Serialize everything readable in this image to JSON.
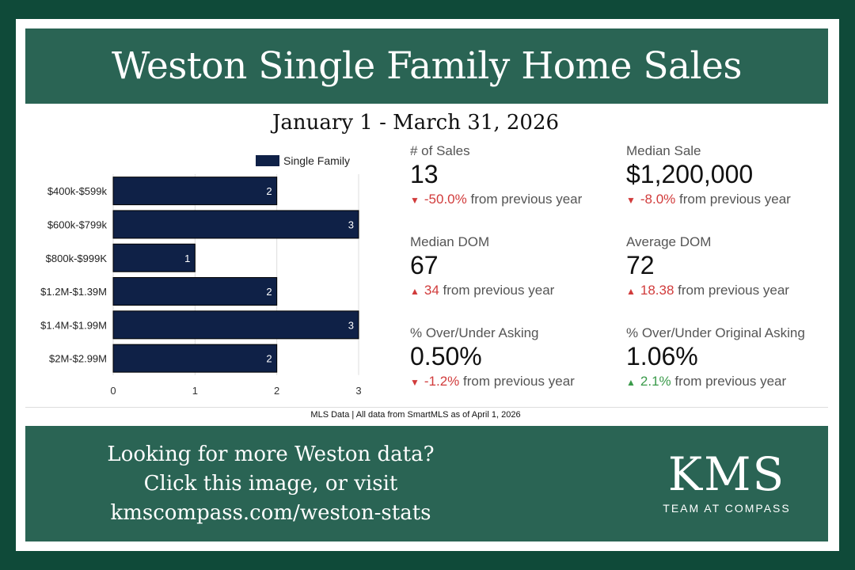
{
  "header": {
    "title": "Weston Single Family Home Sales"
  },
  "date_range": "January 1 - March 31, 2026",
  "chart_data": {
    "type": "bar",
    "orientation": "horizontal",
    "categories": [
      "$400k-$599k",
      "$600k-$799k",
      "$800k-$999K",
      "$1.2M-$1.39M",
      "$1.4M-$1.99M",
      "$2M-$2.99M"
    ],
    "series": [
      {
        "name": "Single Family",
        "values": [
          2,
          3,
          1,
          2,
          3,
          2
        ]
      }
    ],
    "xlim": [
      0,
      3
    ],
    "x_ticks": [
      "0",
      "1",
      "2",
      "3"
    ],
    "grid": true,
    "legend_position": "top-right",
    "colors": {
      "bar": "#0f2147",
      "label": "#ffffff",
      "grid": "#dddddd"
    }
  },
  "stats": [
    {
      "label": "# of Sales",
      "value": "13",
      "direction": "down",
      "change": "-50.0%",
      "suffix": "from previous year",
      "tone": "red"
    },
    {
      "label": "Median Sale",
      "value": "$1,200,000",
      "direction": "down",
      "change": "-8.0%",
      "suffix": "from previous year",
      "tone": "red"
    },
    {
      "label": "Median DOM",
      "value": "67",
      "direction": "up",
      "change": "34",
      "suffix": "from previous year",
      "tone": "red"
    },
    {
      "label": "Average DOM",
      "value": "72",
      "direction": "up",
      "change": "18.38",
      "suffix": "from previous year",
      "tone": "red"
    },
    {
      "label": "% Over/Under Asking",
      "value": "0.50%",
      "direction": "down",
      "change": "-1.2%",
      "suffix": "from previous year",
      "tone": "red"
    },
    {
      "label": "% Over/Under Original Asking",
      "value": "1.06%",
      "direction": "up",
      "change": "2.1%",
      "suffix": "from previous year",
      "tone": "green"
    }
  ],
  "source": "MLS Data | All data from SmartMLS as of April 1, 2026",
  "footer": {
    "cta_line1": "Looking for more Weston data?",
    "cta_line2": "Click this image, or visit",
    "cta_line3": "kmscompass.com/weston-stats",
    "logo_main": "KMS",
    "logo_sub": "TEAM AT COMPASS"
  },
  "colors": {
    "frame": "#0f4a39",
    "banner": "#2a6454",
    "up_arrow": "▲",
    "down_arrow": "▼"
  }
}
